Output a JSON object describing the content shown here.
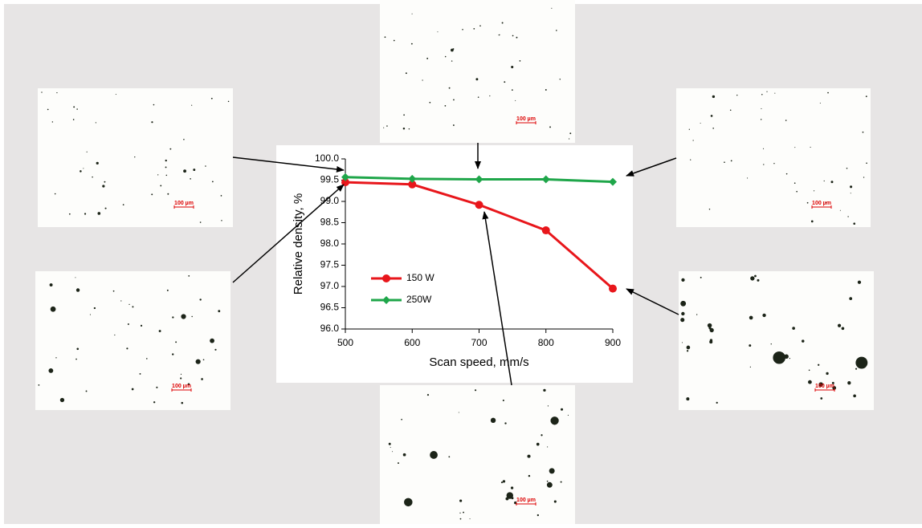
{
  "chart_data": {
    "type": "line",
    "x": [
      500,
      600,
      700,
      800,
      900
    ],
    "series": [
      {
        "name": "150 W",
        "color": "#e8161b",
        "marker": "circle",
        "values": [
          99.45,
          99.4,
          98.92,
          98.32,
          96.95
        ]
      },
      {
        "name": "250W",
        "color": "#1fa64a",
        "marker": "diamond",
        "values": [
          99.57,
          99.53,
          99.52,
          99.52,
          99.46
        ]
      }
    ],
    "xlim": [
      500,
      900
    ],
    "xticks": [
      500,
      600,
      700,
      800,
      900
    ],
    "ylim": [
      96,
      100
    ],
    "yticks": [
      {
        "value": 96,
        "label": "96.0"
      },
      96.5,
      {
        "value": 97,
        "label": "97.0"
      },
      97.5,
      {
        "value": 98,
        "label": "98.0"
      },
      98.5,
      {
        "value": 99,
        "label": "99.0"
      },
      99.5,
      {
        "value": 100,
        "label": "100.0"
      }
    ],
    "xlabel": "Scan speed, mm/s",
    "ylabel": "Relative density, %",
    "grid": false,
    "legend": "lower left"
  },
  "micrographs": [
    {
      "scale_label": "100 µm"
    },
    {
      "scale_label": "100 µm"
    },
    {
      "scale_label": "100 µm"
    },
    {
      "scale_label": "100 µm"
    },
    {
      "scale_label": "100 µm"
    },
    {
      "scale_label": "100 µm"
    }
  ]
}
